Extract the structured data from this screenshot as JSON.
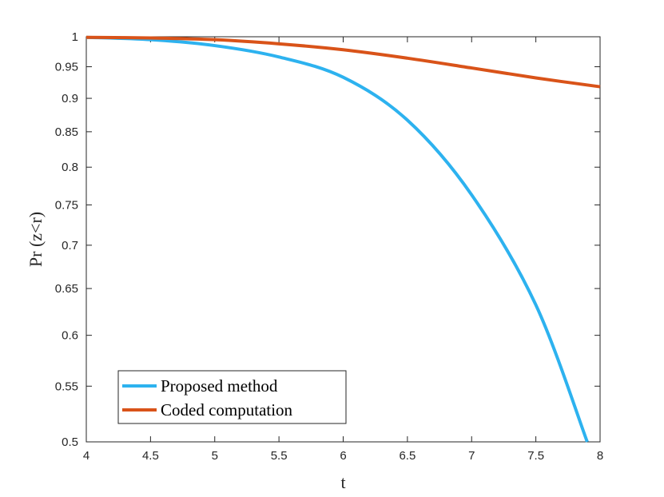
{
  "chart_data": {
    "type": "line",
    "xlabel": "t",
    "ylabel": "Pr (z<r)",
    "xlim": [
      4,
      8
    ],
    "ylim": [
      0.5,
      1
    ],
    "y_scale": "log",
    "x_ticks": [
      4,
      4.5,
      5,
      5.5,
      6,
      6.5,
      7,
      7.5,
      8
    ],
    "x_tick_labels": [
      "4",
      "4.5",
      "5",
      "5.5",
      "6",
      "6.5",
      "7",
      "7.5",
      "8"
    ],
    "y_ticks": [
      0.5,
      0.55,
      0.6,
      0.65,
      0.7,
      0.75,
      0.8,
      0.85,
      0.9,
      0.95,
      1
    ],
    "y_tick_labels": [
      "0.5",
      "0.55",
      "0.6",
      "0.65",
      "0.7",
      "0.75",
      "0.8",
      "0.85",
      "0.9",
      "0.95",
      "1"
    ],
    "grid": false,
    "legend_position": "bottom-left",
    "series": [
      {
        "name": "Proposed method",
        "color": "#2db2ef",
        "x": [
          4,
          4.5,
          5,
          5.5,
          6,
          6.5,
          7,
          7.5,
          7.9
        ],
        "y": [
          0.999,
          0.995,
          0.985,
          0.966,
          0.933,
          0.867,
          0.763,
          0.632,
          0.5
        ]
      },
      {
        "name": "Coded computation",
        "color": "#d95319",
        "x": [
          4,
          4.5,
          5,
          5.5,
          6,
          6.5,
          7,
          7.5,
          8
        ],
        "y": [
          0.999,
          0.998,
          0.995,
          0.988,
          0.978,
          0.964,
          0.948,
          0.932,
          0.918
        ]
      }
    ]
  }
}
